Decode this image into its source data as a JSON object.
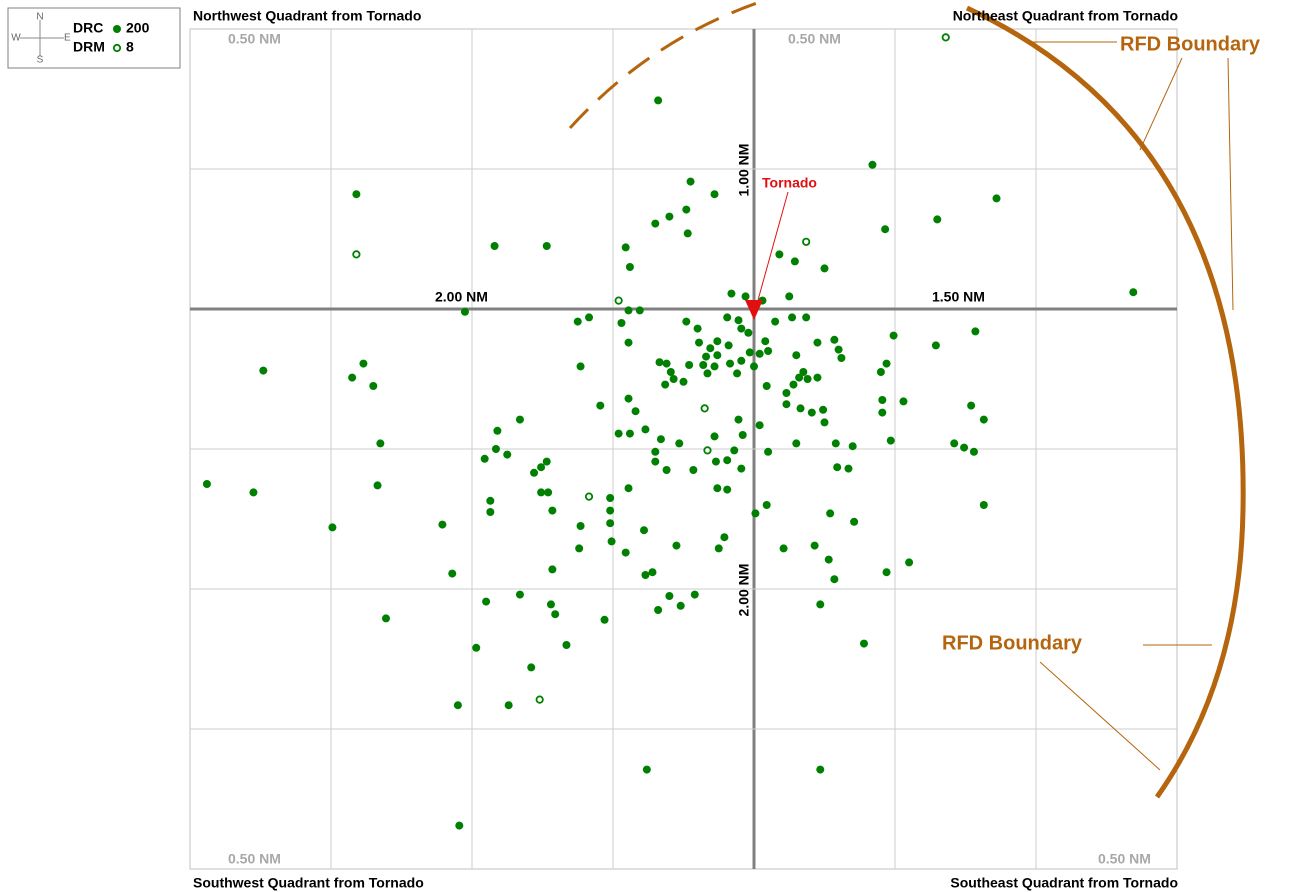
{
  "chart_data": {
    "type": "scatter",
    "series": [
      {
        "name": "DRC",
        "count": 200,
        "color": "#008000",
        "marker": "filled",
        "x": [
          -0.68,
          0.84,
          -0.45,
          -2.82,
          1.72,
          -0.28,
          -0.48,
          -0.6,
          -0.7,
          1.3,
          0.93,
          -0.47,
          -1.84,
          -1.47,
          -0.91,
          0.18,
          0.29,
          -0.88,
          0.5,
          -0.16,
          -0.06,
          0.06,
          0.25,
          2.69,
          -2.05,
          -0.81,
          -0.89,
          -1.17,
          -1.25,
          -0.94,
          -0.48,
          -0.19,
          -0.11,
          0.15,
          0.27,
          0.37,
          -0.09,
          -0.04,
          1.57,
          0.99,
          -0.89,
          -0.39,
          -0.26,
          -0.18,
          0.08,
          0.45,
          0.57,
          1.29,
          0.6,
          0.62,
          -0.31,
          -0.03,
          0.04,
          0.1,
          0.3,
          -0.34,
          -0.26,
          -0.67,
          -0.62,
          -0.46,
          -0.36,
          -0.17,
          -0.09,
          0,
          -0.28,
          0.94,
          -2.77,
          -3.48,
          -1.23,
          -0.59,
          -0.33,
          -0.12,
          0.35,
          0.9,
          -2.85,
          0.32,
          0.38,
          0.45,
          -0.57,
          -0.5,
          -2.7,
          -0.63,
          0.09,
          0.28,
          -0.89,
          0.23,
          0.91,
          1.06,
          -1.09,
          -0.84,
          0.23,
          0.33,
          0.41,
          0.49,
          0.91,
          1.54,
          1.63,
          -1.66,
          -0.11,
          0.04,
          0.5,
          -1.82,
          -0.96,
          -0.88,
          -0.77,
          -0.66,
          -0.53,
          -0.28,
          -0.08,
          -2.65,
          0.3,
          0.58,
          0.7,
          0.97,
          1.42,
          1.49,
          1.56,
          -1.83,
          -1.75,
          -1.91,
          -0.7,
          -0.14,
          0.1,
          -0.27,
          -0.7,
          -0.19,
          -1.47,
          -1.51,
          -1.56,
          -0.62,
          -0.43,
          -0.09,
          0.59,
          0.67,
          -3.88,
          -2.67,
          -0.89,
          -0.26,
          -0.19,
          -3.55,
          -1.51,
          -1.46,
          -1.87,
          -1.02,
          -1.43,
          0.09,
          -1.02,
          -1.87,
          0.01,
          1.63,
          -1.23,
          0.54,
          0.71,
          -2.99,
          -2.21,
          -1.02,
          -0.78,
          -0.21,
          -1.24,
          -1.01,
          -0.55,
          -0.25,
          0.21,
          0.43,
          -0.91,
          0.53,
          -1.43,
          -0.72,
          -0.77,
          -2.14,
          0.94,
          1.1,
          0.57,
          -1.66,
          -0.6,
          -1.9,
          -1.44,
          -0.52,
          -0.42,
          -1.41,
          -0.68,
          0.47,
          -2.61,
          -1.06,
          -1.33,
          0.78,
          -1.97,
          -1.58,
          -2.1,
          -1.74,
          -0.76,
          0.47,
          -2.09,
          -0.4
        ],
        "y": [
          1.49,
          1.03,
          0.91,
          0.82,
          0.79,
          0.82,
          0.71,
          0.66,
          0.61,
          0.64,
          0.57,
          0.54,
          0.45,
          0.45,
          0.44,
          0.39,
          0.34,
          0.3,
          0.29,
          0.11,
          0.09,
          0.06,
          0.09,
          0.12,
          -0.02,
          -0.01,
          -0.01,
          -0.06,
          -0.09,
          -0.1,
          -0.09,
          -0.06,
          -0.08,
          -0.09,
          -0.06,
          -0.06,
          -0.14,
          -0.17,
          -0.16,
          -0.19,
          -0.24,
          -0.24,
          -0.23,
          -0.26,
          -0.23,
          -0.24,
          -0.22,
          -0.26,
          -0.29,
          -0.35,
          -0.28,
          -0.31,
          -0.32,
          -0.3,
          -0.33,
          -0.34,
          -0.33,
          -0.38,
          -0.39,
          -0.4,
          -0.4,
          -0.39,
          -0.37,
          -0.41,
          -0.41,
          -0.39,
          -0.39,
          -0.44,
          -0.41,
          -0.45,
          -0.46,
          -0.46,
          -0.45,
          -0.45,
          -0.49,
          -0.49,
          -0.5,
          -0.49,
          -0.5,
          -0.52,
          -0.55,
          -0.54,
          -0.55,
          -0.54,
          -0.64,
          -0.6,
          -0.65,
          -0.66,
          -0.69,
          -0.73,
          -0.68,
          -0.71,
          -0.74,
          -0.72,
          -0.74,
          -0.69,
          -0.79,
          -0.79,
          -0.79,
          -0.83,
          -0.81,
          -0.87,
          -0.89,
          -0.89,
          -0.86,
          -0.93,
          -0.96,
          -0.91,
          -0.9,
          -0.96,
          -0.96,
          -0.96,
          -0.98,
          -0.94,
          -0.96,
          -0.99,
          -1.02,
          -1,
          -1.04,
          -1.07,
          -1.02,
          -1.01,
          -1.02,
          -1.09,
          -1.09,
          -1.08,
          -1.09,
          -1.13,
          -1.17,
          -1.15,
          -1.15,
          -1.14,
          -1.13,
          -1.14,
          -1.25,
          -1.26,
          -1.28,
          -1.28,
          -1.29,
          -1.31,
          -1.31,
          -1.31,
          -1.37,
          -1.35,
          -1.44,
          -1.4,
          -1.44,
          -1.45,
          -1.46,
          -1.4,
          -1.55,
          -1.46,
          -1.52,
          -1.56,
          -1.54,
          -1.53,
          -1.58,
          -1.63,
          -1.71,
          -1.66,
          -1.69,
          -1.71,
          -1.71,
          -1.69,
          -1.74,
          -1.79,
          -1.86,
          -1.88,
          -1.9,
          -1.89,
          -1.88,
          -1.81,
          -1.93,
          -2.04,
          -2.05,
          -2.09,
          -2.11,
          -2.12,
          -2.04,
          -2.18,
          -2.15,
          -2.11,
          -2.21,
          -2.22,
          -2.4,
          -2.39,
          -2.42,
          -2.56,
          -2.83,
          -2.83,
          -3.29,
          -3.29,
          -3.69,
          -0.14
        ]
      },
      {
        "name": "DRM",
        "count": 8,
        "color": "#008000",
        "marker": "open",
        "x": [
          1.36,
          -2.82,
          0.37,
          -0.96,
          -0.35,
          -0.33,
          -1.17,
          -1.52
        ],
        "y": [
          1.94,
          0.39,
          0.48,
          0.06,
          -0.71,
          -1.01,
          -1.34,
          -2.79
        ]
      }
    ],
    "xlim": [
      -4,
      3
    ],
    "ylim": [
      -4,
      2
    ],
    "xticks": [
      -3,
      -2,
      -1,
      0,
      1,
      2
    ],
    "yticks": [
      -3,
      -2,
      -1,
      0,
      1
    ],
    "grid": true,
    "quadrant_titles": [
      "Northwest Quadrant from Tornado",
      "Northeast Quadrant from Tornado",
      "Southwest Quadrant from Tornado",
      "Southeast Quadrant from Tornado"
    ],
    "corner_labels": [
      "0.50 NM",
      "0.50 NM",
      "0.50 NM",
      "0.50 NM"
    ],
    "distance_labels": [
      "2.00 NM",
      "1.50 NM",
      "1.00 NM",
      "2.00 NM"
    ],
    "tornado_label": "Tornado",
    "rfd_labels": [
      "RFD Boundary",
      "RFD Boundary"
    ],
    "compass": [
      "N",
      "E",
      "S",
      "W"
    ]
  }
}
